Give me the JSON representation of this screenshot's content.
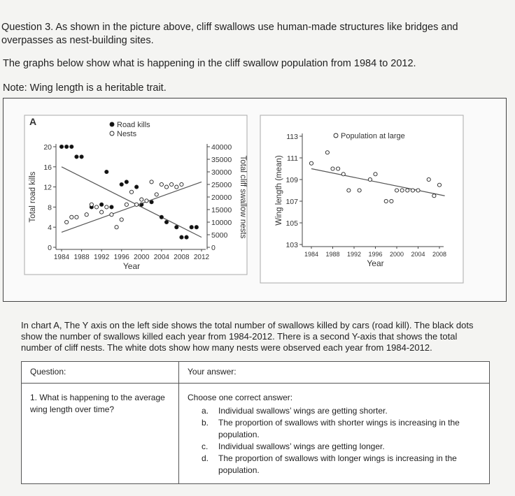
{
  "question_heading": "Question 3. As shown in the picture above, cliff swallows use human-made structures like bridges and overpasses as nest-building sites.",
  "intro": "The graphs below show what is happening in the cliff swallow population from 1984 to 2012.",
  "note": "Note: Wing length is a heritable trait.",
  "chart_data": [
    {
      "type": "scatter",
      "title": "A",
      "x_label": "Year",
      "y_label": "Total road kills",
      "y2_label": "Total cliff swallow nests",
      "xlim": [
        1984,
        2012
      ],
      "xticks": [
        1984,
        1988,
        1992,
        1996,
        2000,
        2004,
        2008,
        2012
      ],
      "ylim": [
        0,
        20
      ],
      "yticks": [
        0,
        4,
        8,
        12,
        16,
        20
      ],
      "y2lim": [
        0,
        40000
      ],
      "y2ticks": [
        0,
        5000,
        10000,
        15000,
        20000,
        25000,
        30000,
        35000,
        40000
      ],
      "series": [
        {
          "name": "Road kills",
          "color": "#111111",
          "x": [
            1984,
            1985,
            1986,
            1987,
            1988,
            1990,
            1992,
            1993,
            1994,
            1996,
            1997,
            1999,
            2000,
            2002,
            2004,
            2005,
            2007,
            2008,
            2009,
            2010,
            2011
          ],
          "values": [
            20,
            20,
            20,
            18,
            18,
            8,
            8.5,
            15,
            8,
            12.5,
            13,
            12,
            8.5,
            9,
            6,
            5,
            4,
            2,
            2,
            4,
            4
          ],
          "trend": {
            "x": [
              1984,
              2012
            ],
            "values": [
              16,
              2
            ]
          }
        },
        {
          "name": "Nests",
          "color": "#ffffff",
          "axis": "y2",
          "x": [
            1985,
            1986,
            1987,
            1989,
            1990,
            1991,
            1992,
            1993,
            1994,
            1995,
            1996,
            1997,
            1998,
            1999,
            2000,
            2001,
            2002,
            2003,
            2004,
            2005,
            2006,
            2007,
            2008
          ],
          "values": [
            10000,
            12000,
            12000,
            13000,
            17000,
            16000,
            14000,
            16000,
            13000,
            8000,
            11000,
            17000,
            22000,
            17000,
            19000,
            18500,
            26000,
            21000,
            25000,
            24000,
            25000,
            24000,
            25000
          ],
          "trend": {
            "x": [
              1984,
              2012
            ],
            "values": [
              6000,
              26000
            ]
          }
        }
      ]
    },
    {
      "type": "scatter",
      "x_label": "Year",
      "y_label": "Wing length (mean)",
      "xlim": [
        1984,
        2008
      ],
      "xticks": [
        1984,
        1988,
        1992,
        1996,
        2000,
        2004,
        2008
      ],
      "ylim": [
        103,
        113
      ],
      "yticks": [
        103,
        105,
        107,
        109,
        111,
        113
      ],
      "series": [
        {
          "name": "Population at large",
          "color": "#ffffff",
          "x": [
            1984,
            1987,
            1988,
            1989,
            1990,
            1991,
            1993,
            1995,
            1996,
            1998,
            1999,
            2000,
            2001,
            2002,
            2003,
            2004,
            2006,
            2007,
            2008
          ],
          "values": [
            110.5,
            111.5,
            110,
            110,
            109.5,
            108,
            108,
            109,
            109.5,
            107,
            107,
            108,
            108,
            108,
            108,
            108,
            109,
            107.5,
            108.5
          ],
          "trend": {
            "x": [
              1984,
              2009
            ],
            "values": [
              110,
              107.5
            ]
          }
        }
      ]
    }
  ],
  "explanation": "In chart A, The Y axis on the left side shows the total number of swallows killed by cars (road kill). The black dots show the number of swallows killed each year from 1984-2012. There is a second Y-axis that shows the total number of cliff nests. The white dots show how many nests were observed each year from 1984-2012.",
  "table": {
    "header": [
      "Question:",
      "Your answer:"
    ],
    "question": "1. What is happening to the average wing length over time?",
    "prompt": "Choose one correct answer:",
    "options": [
      {
        "letter": "a.",
        "text": "Individual swallows’ wings are getting shorter."
      },
      {
        "letter": "b.",
        "text": "The proportion of swallows with shorter wings is increasing in the population."
      },
      {
        "letter": "c.",
        "text": "Individual swallows’ wings are getting longer."
      },
      {
        "letter": "d.",
        "text": "The proportion of swallows with longer wings is increasing in the population."
      }
    ]
  }
}
